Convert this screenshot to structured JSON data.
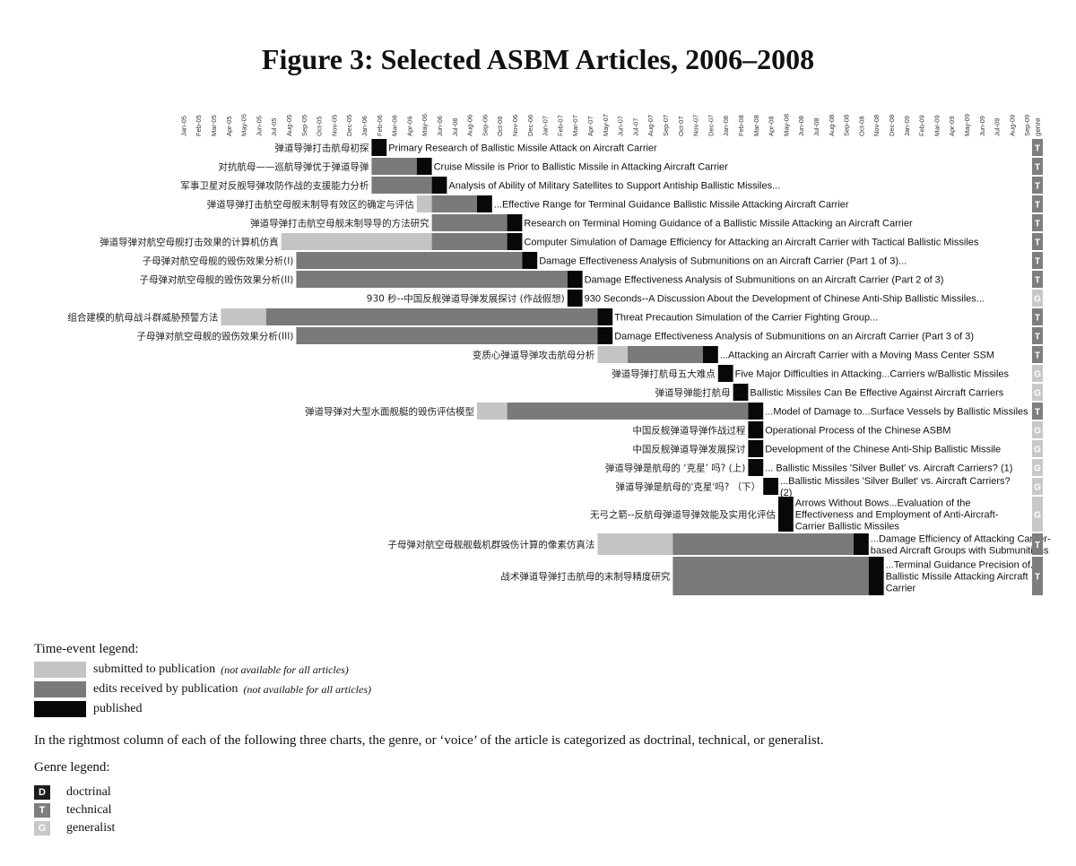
{
  "chart_data": {
    "type": "gantt",
    "title": "Figure 3: Selected ASBM Articles, 2006–2008",
    "months": [
      "Jan-05",
      "Feb-05",
      "Mar-05",
      "Apr-05",
      "May-05",
      "Jun-05",
      "Jul-05",
      "Aug-05",
      "Sep-05",
      "Oct-05",
      "Nov-05",
      "Dec-05",
      "Jan-06",
      "Feb-06",
      "Mar-06",
      "Apr-06",
      "May-06",
      "Jun-06",
      "Jul-06",
      "Aug-06",
      "Sep-06",
      "Oct-06",
      "Nov-06",
      "Dec-06",
      "Jan-07",
      "Feb-07",
      "Mar-07",
      "Apr-07",
      "May-07",
      "Jun-07",
      "Jul-07",
      "Aug-07",
      "Sep-07",
      "Oct-07",
      "Nov-07",
      "Dec-07",
      "Jan-08",
      "Feb-08",
      "Mar-08",
      "Apr-08",
      "May-08",
      "Jun-08",
      "Jul-08",
      "Aug-08",
      "Sep-08",
      "Oct-08",
      "Nov-08",
      "Dec-08",
      "Jan-09",
      "Feb-09",
      "Mar-09",
      "Apr-09",
      "May-09",
      "Jun-09",
      "Jul-09",
      "Aug-09",
      "Sep-09"
    ],
    "genre_header": "genre",
    "genre_colors": {
      "D": "#1c1c1c",
      "T": "#7e7e7e",
      "G": "#c8c8c8"
    },
    "stage_colors": {
      "submitted": "#c4c4c4",
      "edits": "#7a7a7a",
      "published": "#080808"
    },
    "articles": [
      {
        "cn": "弹道导弹打击航母初探",
        "en": [
          "Primary Research of Ballistic Missile Attack on Aircraft Carrier"
        ],
        "submitted": null,
        "edits": null,
        "published": 13,
        "genre": "T"
      },
      {
        "cn": "对抗航母——巡航导弹优于弹道导弹",
        "en": [
          "Cruise Missile is Prior to Ballistic Missile in Attacking Aircraft Carrier"
        ],
        "submitted": null,
        "edits": 13,
        "published": 16,
        "genre": "T"
      },
      {
        "cn": "军事卫星对反舰导弹攻防作战的支援能力分析",
        "en": [
          "Analysis of Ability of Military Satellites to Support Antiship Ballistic Missiles..."
        ],
        "submitted": null,
        "edits": 13,
        "published": 17,
        "genre": "T"
      },
      {
        "cn": "弹道导弹打击航空母舰末制导有效区的确定与评估",
        "en": [
          "...Effective Range for Terminal Guidance Ballistic Missile Attacking Aircraft Carrier"
        ],
        "submitted": 16,
        "edits": 17,
        "published": 20,
        "genre": "T"
      },
      {
        "cn": "弹道导弹打击航空母舰末制导导的方法研究",
        "en": [
          "Research on Terminal Homing Guidance of a Ballistic Missile Attacking an Aircraft Carrier"
        ],
        "submitted": null,
        "edits": 17,
        "published": 22,
        "genre": "T"
      },
      {
        "cn": "弹道导弹对航空母舰打击效果的计算机仿真",
        "en": [
          "Computer Simulation of Damage Efficiency for Attacking an Aircraft Carrier with Tactical Ballistic Missiles"
        ],
        "submitted": 7,
        "edits": 17,
        "published": 22,
        "genre": "T"
      },
      {
        "cn": "子母弹对航空母舰的毁伤效果分析(I)",
        "en": [
          "Damage Effectiveness Analysis of Submunitions on an Aircraft Carrier (Part 1 of 3)..."
        ],
        "submitted": null,
        "edits": 8,
        "published": 23,
        "genre": "T"
      },
      {
        "cn": "子母弹对航空母舰的毁伤效果分析(II)",
        "en": [
          "Damage Effectiveness Analysis of Submunitions on an Aircraft Carrier (Part 2 of 3)"
        ],
        "submitted": null,
        "edits": 8,
        "published": 26,
        "genre": "T"
      },
      {
        "cn": "930 秒--中国反舰弹道导弹发展探讨 (作战假想)",
        "en": [
          "930 Seconds--A Discussion About the Development of Chinese Anti-Ship Ballistic Missiles..."
        ],
        "submitted": null,
        "edits": null,
        "published": 26,
        "genre": "G"
      },
      {
        "cn": "组合建模的航母战斗群威胁预警方法",
        "en": [
          "Threat Precaution Simulation of the Carrier Fighting Group..."
        ],
        "submitted": 3,
        "edits": 6,
        "published": 28,
        "genre": "T"
      },
      {
        "cn": "子母弹对航空母舰的毁伤效果分析(III)",
        "en": [
          "Damage Effectiveness Analysis of Submunitions on an Aircraft Carrier (Part 3 of 3)"
        ],
        "submitted": null,
        "edits": 8,
        "published": 28,
        "genre": "T"
      },
      {
        "cn": "变质心弹道导弹攻击航母分析",
        "en": [
          "...Attacking an Aircraft Carrier with a Moving Mass Center SSM"
        ],
        "submitted": 28,
        "edits": 30,
        "published": 35,
        "genre": "T"
      },
      {
        "cn": "弹道导弹打航母五大难点",
        "en": [
          "Five Major Difficulties in Attacking...Carriers w/Ballistic Missiles"
        ],
        "submitted": null,
        "edits": null,
        "published": 36,
        "genre": "G"
      },
      {
        "cn": "弹道导弹能打航母",
        "en": [
          "Ballistic Missiles Can Be Effective Against Aircraft Carriers"
        ],
        "submitted": null,
        "edits": null,
        "published": 37,
        "genre": "G"
      },
      {
        "cn": "弹道导弹对大型水面舰艇的毁伤评估模型",
        "en": [
          "...Model of Damage to...Surface Vessels by Ballistic Missiles"
        ],
        "submitted": 20,
        "edits": 22,
        "published": 38,
        "genre": "T"
      },
      {
        "cn": "中国反舰弹道导弹作战过程",
        "en": [
          "Operational Process of the Chinese ASBM"
        ],
        "submitted": null,
        "edits": null,
        "published": 38,
        "genre": "G"
      },
      {
        "cn": "中国反舰弹道导弹发展探讨",
        "en": [
          "Development of the Chinese Anti-Ship Ballistic Missile"
        ],
        "submitted": null,
        "edits": null,
        "published": 38,
        "genre": "G"
      },
      {
        "cn": "弹道导弹是航母的 ‘克星’ 吗? (上)",
        "en": [
          "... Ballistic Missiles 'Silver Bullet' vs. Aircraft Carriers? (1)"
        ],
        "submitted": null,
        "edits": null,
        "published": 38,
        "genre": "G"
      },
      {
        "cn": "弹道导弹是航母的'克星'吗? （下）",
        "en": [
          "...Ballistic Missiles 'Silver Bullet' vs. Aircraft Carriers?",
          "(2)"
        ],
        "submitted": null,
        "edits": null,
        "published": 39,
        "genre": "G"
      },
      {
        "cn": "无弓之箭--反航母弹道导弹效能及实用化评估",
        "en": [
          "Arrows Without Bows...Evaluation of the",
          "Effectiveness and Employment of Anti-Aircraft-",
          "Carrier Ballistic Missiles"
        ],
        "submitted": null,
        "edits": null,
        "published": 40,
        "genre": "G"
      },
      {
        "cn": "子母弹对航空母舰舰载机群毁伤计算的像素仿真法",
        "en": [
          "...Damage Efficiency of Attacking Carrier-",
          "based Aircraft Groups with Submunitions"
        ],
        "submitted": 28,
        "edits": 33,
        "published": 45,
        "genre": "T"
      },
      {
        "cn": "战术弹道导弹打击航母的末制导精度研究",
        "en": [
          "...Terminal Guidance Precision of...",
          "Ballistic Missile Attacking Aircraft",
          "Carrier"
        ],
        "submitted": null,
        "edits": 33,
        "published": 46,
        "genre": "T"
      }
    ]
  },
  "legend": {
    "time_event_title": "Time-event legend:",
    "items": [
      {
        "label": "submitted to publication",
        "note": "(not available for all articles)"
      },
      {
        "label": "edits received by publication",
        "note": "(not available for all articles)"
      },
      {
        "label": "published",
        "note": ""
      }
    ],
    "genre_note": "In the rightmost column of each of the following three charts, the genre, or ‘voice’ of the article is categorized as doctrinal, technical, or generalist.",
    "genre_title": "Genre legend:",
    "genres": [
      {
        "letter": "D",
        "label": "doctrinal"
      },
      {
        "letter": "T",
        "label": "technical"
      },
      {
        "letter": "G",
        "label": "generalist"
      }
    ]
  }
}
